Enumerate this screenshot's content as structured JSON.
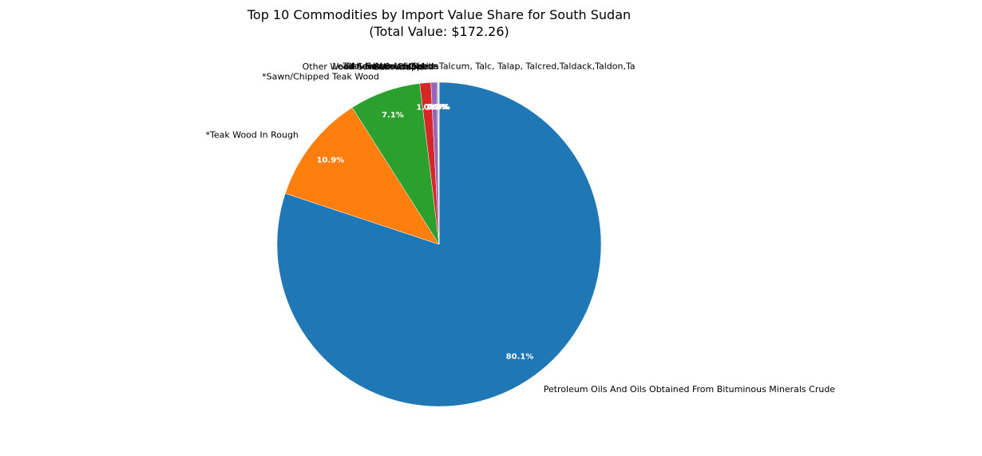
{
  "chart_data": {
    "type": "pie",
    "title": "Top 10 Commodities by Import Value Share for South Sudan",
    "subtitle": "(Total Value: $172.26)",
    "start_angle_deg": 90,
    "direction": "clockwise",
    "slices": [
      {
        "label": "Petroleum Oils And Oils Obtained From Bituminous Minerals Crude",
        "value": 80.1,
        "pct_label": "80.1%",
        "color": "#1f77b4"
      },
      {
        "label": "*Teak Wood In Rough",
        "value": 10.9,
        "pct_label": "10.9%",
        "color": "#ff7f0e"
      },
      {
        "label": "*Sawn/Chipped Teak Wood",
        "value": 7.1,
        "pct_label": "7.1%",
        "color": "#2ca02c"
      },
      {
        "label": "Gum Arabic",
        "value": 1.1,
        "pct_label": "1.1%",
        "color": "#d62728"
      },
      {
        "label": "Other Wood Sawn Or Chipped",
        "value": 0.6,
        "pct_label": "0.6%",
        "color": "#9467bd"
      },
      {
        "label": "Talc, Natural, Steatite",
        "value": 0.1,
        "pct_label": "0.1%",
        "color": "#8c564b"
      },
      {
        "label": "Lead-Acid Accumulators",
        "value": 0.05,
        "pct_label": "0.0%",
        "color": "#e377c2"
      },
      {
        "label": "Sesamum Seeds",
        "value": 0.03,
        "pct_label": "0.0%",
        "color": "#7f7f7f"
      },
      {
        "label": "Other Articles Of Iron",
        "value": 0.02,
        "pct_label": "0.0%",
        "color": "#bcbd22"
      },
      {
        "label": "Talcum, Talc, Talap, Talcred,Taldack,Taldon,Ta",
        "value": 0.01,
        "pct_label": "0.0%",
        "color": "#17becf"
      }
    ]
  }
}
